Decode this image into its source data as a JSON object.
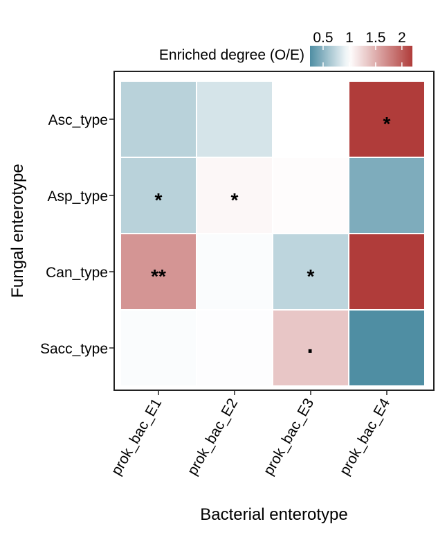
{
  "chart_data": {
    "type": "heatmap",
    "xlabel": "Bacterial enterotype",
    "ylabel": "Fungal enterotype",
    "x_categories": [
      "prok_bac_E1",
      "prok_bac_E2",
      "prok_bac_E3",
      "prok_bac_E4"
    ],
    "y_categories": [
      "Asc_type",
      "Asp_type",
      "Can_type",
      "Sacc_type"
    ],
    "values": [
      [
        0.7,
        0.82,
        1.0,
        2.2
      ],
      [
        0.7,
        1.05,
        1.02,
        0.45
      ],
      [
        1.65,
        0.98,
        0.72,
        2.2
      ],
      [
        0.98,
        0.99,
        1.35,
        0.25
      ]
    ],
    "annotations": [
      [
        "",
        "",
        "",
        "*"
      ],
      [
        "*",
        "*",
        "",
        ""
      ],
      [
        "**",
        "",
        "*",
        ""
      ],
      [
        "",
        "",
        "·",
        ""
      ]
    ],
    "legend": {
      "title": "Enriched degree (O/E)",
      "ticks": [
        "0.5",
        "1",
        "1.5",
        "2"
      ],
      "tick_values": [
        0.5,
        1,
        1.5,
        2
      ],
      "range": [
        0.25,
        2.2
      ],
      "placement": "top"
    },
    "colors": {
      "low": "#4f8ea3",
      "mid": "#ffffff",
      "high": "#b03c3a",
      "midpoint": 1
    }
  }
}
